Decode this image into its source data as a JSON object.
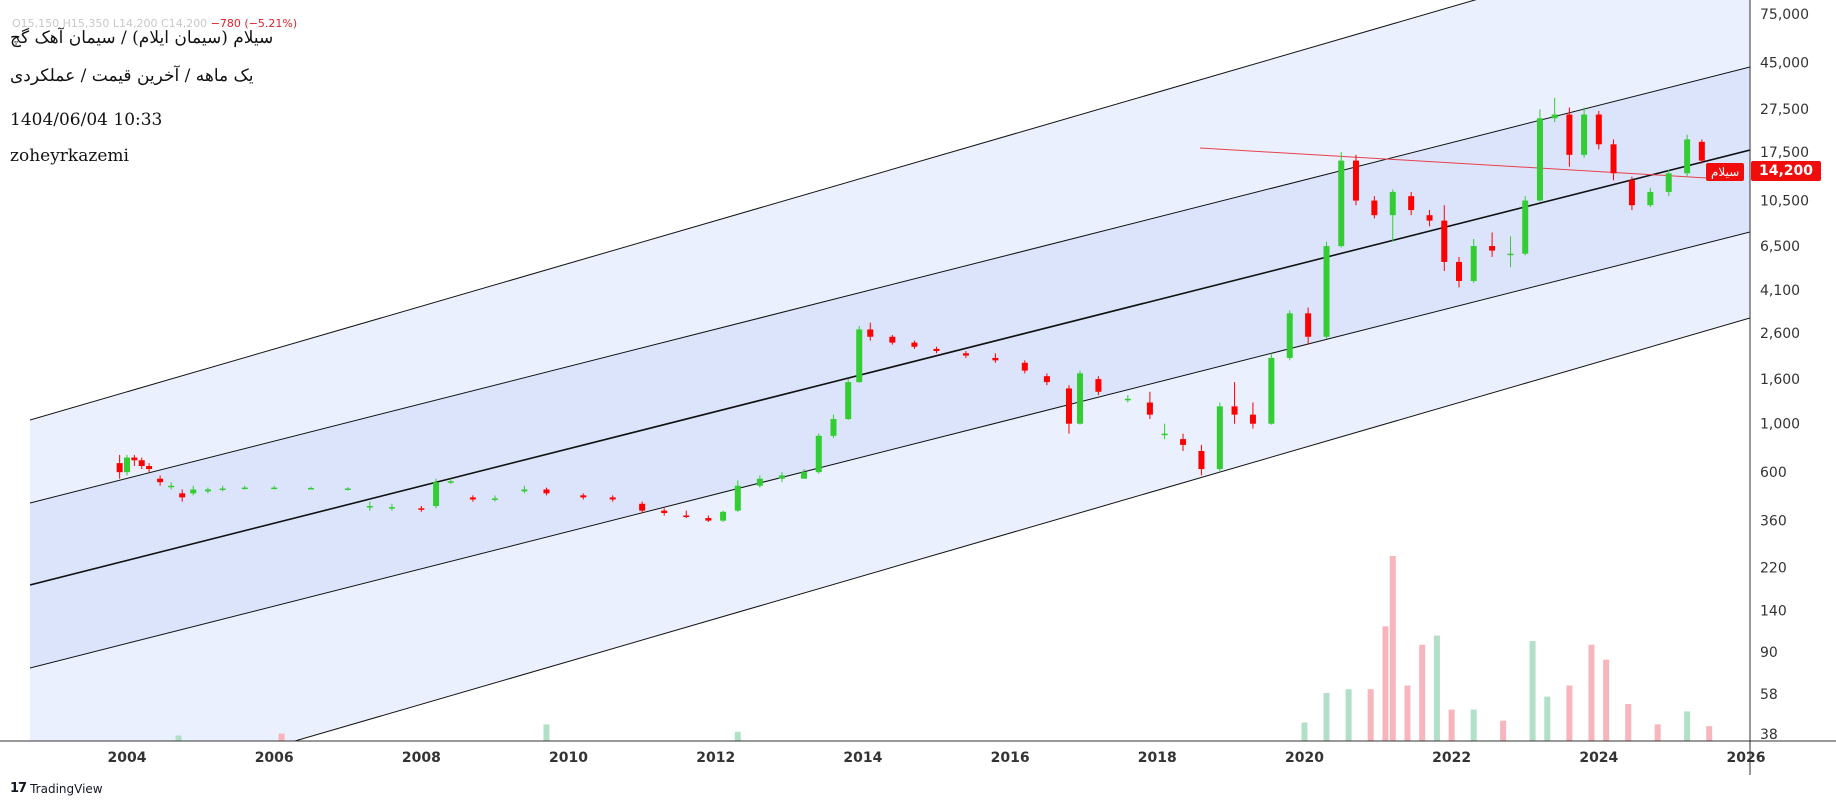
{
  "header": {
    "ohlc_line": "O15,150  H15,350  L14,200  C14,200",
    "change": "−780 (−5.21%)",
    "title": "سیلام (سیمان ایلام) / سیمان آهک گچ",
    "subtitle": "یک ماهه / آخرین قیمت / عملکردی",
    "datetime": "1404/06/04 10:33",
    "author": "zoheyrkazemi"
  },
  "price_tag": {
    "value": "14,200",
    "symbol": "سیلام"
  },
  "branding": {
    "logo_text": "TradingView",
    "logo_mark": "17"
  },
  "colors": {
    "up": "#4caf50",
    "up_bright": "#33cc33",
    "down": "#ff0000",
    "vol_up": "#b2dfc8",
    "vol_down": "#f7b6bd",
    "channel_inner": "#dbe4fb",
    "channel_outer": "#eaf0fd",
    "trendline": "#e8404a"
  },
  "chart_data": {
    "type": "candlestick",
    "scale": "log",
    "y_ticks": [
      "75,000",
      "45,000",
      "27,500",
      "17,500",
      "10,500",
      "6,500",
      "4,100",
      "2,600",
      "1,600",
      "1,000",
      "600",
      "360",
      "220",
      "140",
      "90",
      "58",
      "38"
    ],
    "x_ticks": [
      "2004",
      "2006",
      "2008",
      "2010",
      "2012",
      "2014",
      "2016",
      "2018",
      "2020",
      "2022",
      "2024",
      "2026"
    ],
    "last_price": 14200,
    "series": [
      {
        "t": 2003.9,
        "o": 660,
        "h": 720,
        "l": 560,
        "c": 600
      },
      {
        "t": 2004.0,
        "o": 600,
        "h": 720,
        "l": 580,
        "c": 700
      },
      {
        "t": 2004.1,
        "o": 700,
        "h": 720,
        "l": 640,
        "c": 680
      },
      {
        "t": 2004.2,
        "o": 680,
        "h": 700,
        "l": 620,
        "c": 640
      },
      {
        "t": 2004.3,
        "o": 640,
        "h": 660,
        "l": 600,
        "c": 620
      },
      {
        "t": 2004.45,
        "o": 560,
        "h": 580,
        "l": 520,
        "c": 540
      },
      {
        "t": 2004.6,
        "o": 520,
        "h": 540,
        "l": 500,
        "c": 520
      },
      {
        "t": 2004.75,
        "o": 480,
        "h": 500,
        "l": 440,
        "c": 460
      },
      {
        "t": 2004.9,
        "o": 480,
        "h": 520,
        "l": 470,
        "c": 500
      },
      {
        "t": 2005.1,
        "o": 490,
        "h": 510,
        "l": 480,
        "c": 500
      },
      {
        "t": 2005.3,
        "o": 500,
        "h": 520,
        "l": 490,
        "c": 505
      },
      {
        "t": 2005.6,
        "o": 510,
        "h": 520,
        "l": 500,
        "c": 510
      },
      {
        "t": 2006.0,
        "o": 505,
        "h": 520,
        "l": 500,
        "c": 510
      },
      {
        "t": 2006.5,
        "o": 505,
        "h": 515,
        "l": 500,
        "c": 508
      },
      {
        "t": 2007.0,
        "o": 505,
        "h": 512,
        "l": 495,
        "c": 505
      },
      {
        "t": 2007.3,
        "o": 420,
        "h": 440,
        "l": 400,
        "c": 420
      },
      {
        "t": 2007.6,
        "o": 410,
        "h": 430,
        "l": 400,
        "c": 415
      },
      {
        "t": 2008.0,
        "o": 410,
        "h": 420,
        "l": 395,
        "c": 405
      },
      {
        "t": 2008.2,
        "o": 420,
        "h": 560,
        "l": 410,
        "c": 540
      },
      {
        "t": 2008.4,
        "o": 540,
        "h": 560,
        "l": 530,
        "c": 545
      },
      {
        "t": 2008.7,
        "o": 460,
        "h": 470,
        "l": 440,
        "c": 450
      },
      {
        "t": 2009.0,
        "o": 450,
        "h": 470,
        "l": 440,
        "c": 455
      },
      {
        "t": 2009.4,
        "o": 490,
        "h": 520,
        "l": 480,
        "c": 500
      },
      {
        "t": 2009.7,
        "o": 500,
        "h": 510,
        "l": 470,
        "c": 480
      },
      {
        "t": 2010.2,
        "o": 470,
        "h": 480,
        "l": 450,
        "c": 460
      },
      {
        "t": 2010.6,
        "o": 460,
        "h": 470,
        "l": 440,
        "c": 450
      },
      {
        "t": 2011.0,
        "o": 430,
        "h": 440,
        "l": 390,
        "c": 400
      },
      {
        "t": 2011.3,
        "o": 400,
        "h": 410,
        "l": 380,
        "c": 390
      },
      {
        "t": 2011.6,
        "o": 380,
        "h": 400,
        "l": 370,
        "c": 375
      },
      {
        "t": 2011.9,
        "o": 370,
        "h": 380,
        "l": 355,
        "c": 360
      },
      {
        "t": 2012.1,
        "o": 360,
        "h": 400,
        "l": 355,
        "c": 395
      },
      {
        "t": 2012.3,
        "o": 400,
        "h": 550,
        "l": 395,
        "c": 520
      },
      {
        "t": 2012.6,
        "o": 520,
        "h": 580,
        "l": 510,
        "c": 560
      },
      {
        "t": 2012.9,
        "o": 560,
        "h": 600,
        "l": 540,
        "c": 580
      },
      {
        "t": 2013.2,
        "o": 560,
        "h": 620,
        "l": 560,
        "c": 600
      },
      {
        "t": 2013.4,
        "o": 600,
        "h": 900,
        "l": 590,
        "c": 880
      },
      {
        "t": 2013.6,
        "o": 880,
        "h": 1100,
        "l": 860,
        "c": 1050
      },
      {
        "t": 2013.8,
        "o": 1050,
        "h": 1600,
        "l": 1040,
        "c": 1550
      },
      {
        "t": 2013.95,
        "o": 1550,
        "h": 2800,
        "l": 1540,
        "c": 2700
      },
      {
        "t": 2014.1,
        "o": 2700,
        "h": 2900,
        "l": 2400,
        "c": 2500
      },
      {
        "t": 2014.4,
        "o": 2500,
        "h": 2550,
        "l": 2300,
        "c": 2350
      },
      {
        "t": 2014.7,
        "o": 2350,
        "h": 2400,
        "l": 2200,
        "c": 2250
      },
      {
        "t": 2015.0,
        "o": 2200,
        "h": 2250,
        "l": 2100,
        "c": 2150
      },
      {
        "t": 2015.4,
        "o": 2100,
        "h": 2150,
        "l": 2000,
        "c": 2050
      },
      {
        "t": 2015.8,
        "o": 2000,
        "h": 2100,
        "l": 1900,
        "c": 1950
      },
      {
        "t": 2016.2,
        "o": 1900,
        "h": 1950,
        "l": 1700,
        "c": 1750
      },
      {
        "t": 2016.5,
        "o": 1650,
        "h": 1700,
        "l": 1500,
        "c": 1550
      },
      {
        "t": 2016.8,
        "o": 1450,
        "h": 1500,
        "l": 900,
        "c": 1000
      },
      {
        "t": 2016.95,
        "o": 1000,
        "h": 1750,
        "l": 990,
        "c": 1700
      },
      {
        "t": 2017.2,
        "o": 1600,
        "h": 1650,
        "l": 1350,
        "c": 1400
      },
      {
        "t": 2017.6,
        "o": 1300,
        "h": 1350,
        "l": 1250,
        "c": 1300
      },
      {
        "t": 2017.9,
        "o": 1250,
        "h": 1400,
        "l": 1050,
        "c": 1100
      },
      {
        "t": 2018.1,
        "o": 900,
        "h": 1000,
        "l": 850,
        "c": 900
      },
      {
        "t": 2018.35,
        "o": 850,
        "h": 900,
        "l": 750,
        "c": 800
      },
      {
        "t": 2018.6,
        "o": 750,
        "h": 800,
        "l": 580,
        "c": 620
      },
      {
        "t": 2018.85,
        "o": 620,
        "h": 1250,
        "l": 600,
        "c": 1200
      },
      {
        "t": 2019.05,
        "o": 1200,
        "h": 1550,
        "l": 1000,
        "c": 1100
      },
      {
        "t": 2019.3,
        "o": 1100,
        "h": 1250,
        "l": 950,
        "c": 1000
      },
      {
        "t": 2019.55,
        "o": 1000,
        "h": 2100,
        "l": 990,
        "c": 2000
      },
      {
        "t": 2019.8,
        "o": 2000,
        "h": 3300,
        "l": 1950,
        "c": 3200
      },
      {
        "t": 2020.05,
        "o": 3200,
        "h": 3400,
        "l": 2300,
        "c": 2500
      },
      {
        "t": 2020.3,
        "o": 2500,
        "h": 6800,
        "l": 2450,
        "c": 6500
      },
      {
        "t": 2020.5,
        "o": 6500,
        "h": 17500,
        "l": 6400,
        "c": 16000
      },
      {
        "t": 2020.7,
        "o": 16000,
        "h": 17000,
        "l": 10000,
        "c": 10500
      },
      {
        "t": 2020.95,
        "o": 10500,
        "h": 11000,
        "l": 8700,
        "c": 9000
      },
      {
        "t": 2021.2,
        "o": 9000,
        "h": 11800,
        "l": 6800,
        "c": 11500
      },
      {
        "t": 2021.45,
        "o": 11000,
        "h": 11500,
        "l": 9000,
        "c": 9500
      },
      {
        "t": 2021.7,
        "o": 9000,
        "h": 9500,
        "l": 8000,
        "c": 8500
      },
      {
        "t": 2021.9,
        "o": 8500,
        "h": 10000,
        "l": 5000,
        "c": 5500
      },
      {
        "t": 2022.1,
        "o": 5500,
        "h": 5800,
        "l": 4200,
        "c": 4500
      },
      {
        "t": 2022.3,
        "o": 4500,
        "h": 7000,
        "l": 4400,
        "c": 6500
      },
      {
        "t": 2022.55,
        "o": 6500,
        "h": 7500,
        "l": 5800,
        "c": 6200
      },
      {
        "t": 2022.8,
        "o": 6000,
        "h": 7200,
        "l": 5200,
        "c": 6000
      },
      {
        "t": 2023.0,
        "o": 6000,
        "h": 11000,
        "l": 5900,
        "c": 10500
      },
      {
        "t": 2023.2,
        "o": 10500,
        "h": 27500,
        "l": 10400,
        "c": 25000
      },
      {
        "t": 2023.4,
        "o": 25000,
        "h": 31000,
        "l": 24000,
        "c": 26000
      },
      {
        "t": 2023.6,
        "o": 26000,
        "h": 28000,
        "l": 15000,
        "c": 17000
      },
      {
        "t": 2023.8,
        "o": 17000,
        "h": 28000,
        "l": 16500,
        "c": 26000
      },
      {
        "t": 2024.0,
        "o": 26000,
        "h": 27000,
        "l": 18000,
        "c": 19000
      },
      {
        "t": 2024.2,
        "o": 19000,
        "h": 20000,
        "l": 13000,
        "c": 14000
      },
      {
        "t": 2024.45,
        "o": 13000,
        "h": 13500,
        "l": 9500,
        "c": 10000
      },
      {
        "t": 2024.7,
        "o": 10000,
        "h": 12000,
        "l": 9800,
        "c": 11500
      },
      {
        "t": 2024.95,
        "o": 11500,
        "h": 14500,
        "l": 11000,
        "c": 14000
      },
      {
        "t": 2025.2,
        "o": 14000,
        "h": 21000,
        "l": 13500,
        "c": 20000
      },
      {
        "t": 2025.4,
        "o": 19500,
        "h": 20000,
        "l": 15500,
        "c": 16000
      },
      {
        "t": 2025.6,
        "o": 15150,
        "h": 15350,
        "l": 14200,
        "c": 14200
      }
    ],
    "volume": [
      {
        "t": 2004.7,
        "v": 3,
        "up": true
      },
      {
        "t": 2006.1,
        "v": 4,
        "up": false
      },
      {
        "t": 2009.7,
        "v": 9,
        "up": true
      },
      {
        "t": 2012.3,
        "v": 5,
        "up": true
      },
      {
        "t": 2020.0,
        "v": 10,
        "up": true
      },
      {
        "t": 2020.3,
        "v": 26,
        "up": true
      },
      {
        "t": 2020.6,
        "v": 28,
        "up": true
      },
      {
        "t": 2020.9,
        "v": 28,
        "up": false
      },
      {
        "t": 2021.1,
        "v": 62,
        "up": false
      },
      {
        "t": 2021.2,
        "v": 100,
        "up": false
      },
      {
        "t": 2021.4,
        "v": 30,
        "up": false
      },
      {
        "t": 2021.6,
        "v": 52,
        "up": false
      },
      {
        "t": 2021.8,
        "v": 57,
        "up": true
      },
      {
        "t": 2022.0,
        "v": 17,
        "up": false
      },
      {
        "t": 2022.3,
        "v": 17,
        "up": true
      },
      {
        "t": 2022.7,
        "v": 11,
        "up": false
      },
      {
        "t": 2023.1,
        "v": 54,
        "up": true
      },
      {
        "t": 2023.3,
        "v": 24,
        "up": true
      },
      {
        "t": 2023.6,
        "v": 30,
        "up": false
      },
      {
        "t": 2023.9,
        "v": 52,
        "up": false
      },
      {
        "t": 2024.1,
        "v": 44,
        "up": false
      },
      {
        "t": 2024.4,
        "v": 20,
        "up": false
      },
      {
        "t": 2024.8,
        "v": 9,
        "up": false
      },
      {
        "t": 2025.2,
        "v": 16,
        "up": true
      },
      {
        "t": 2025.5,
        "v": 8,
        "up": false
      }
    ]
  }
}
